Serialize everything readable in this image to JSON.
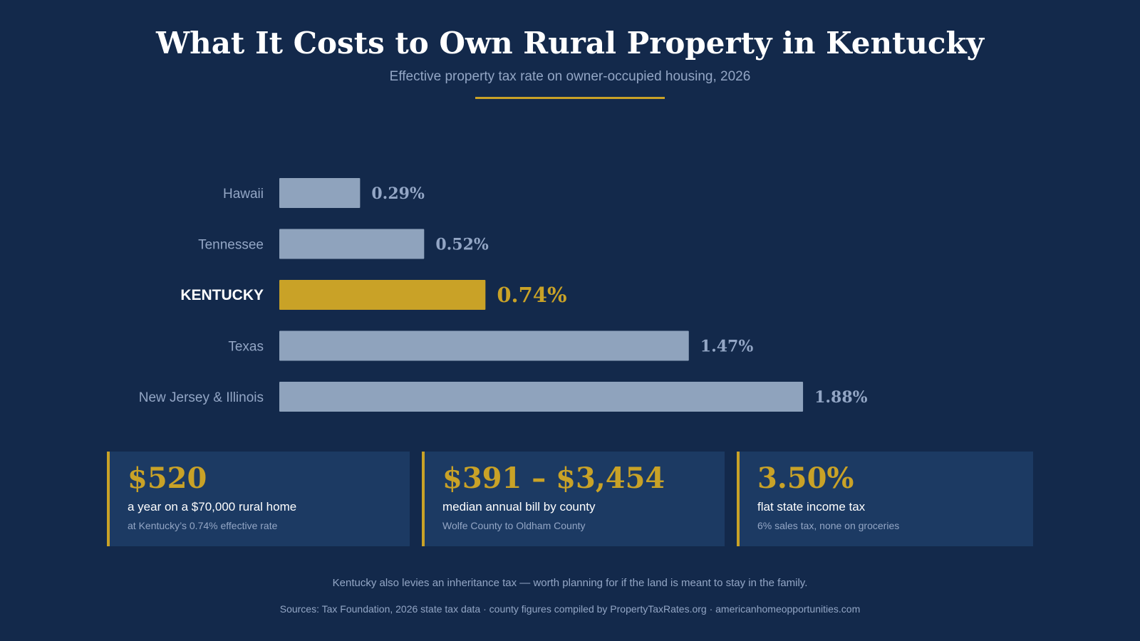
{
  "header": {
    "title": "What It Costs to Own Rural Property in Kentucky",
    "subtitle": "Effective property tax rate on owner-occupied housing, 2026"
  },
  "colors": {
    "background": "#13294b",
    "card": "#1c3a63",
    "accent": "#c9a227",
    "bar": "#8fa3bd",
    "muted_text": "#93a6c5"
  },
  "chart_data": {
    "type": "bar",
    "orientation": "horizontal",
    "title": "",
    "xlabel": "",
    "ylabel": "",
    "categories": [
      "Hawaii",
      "Tennessee",
      "KENTUCKY",
      "Texas",
      "New Jersey & Illinois"
    ],
    "values": [
      0.29,
      0.52,
      0.74,
      1.47,
      1.88
    ],
    "value_labels": [
      "0.29%",
      "0.52%",
      "0.74%",
      "1.47%",
      "1.88%"
    ],
    "highlight": "KENTUCKY",
    "highlight_color": "#c9a227",
    "bar_color": "#8fa3bd",
    "xlim": [
      0,
      2.0
    ],
    "grid": false,
    "legend": "none"
  },
  "stats": [
    {
      "value": "$520",
      "desc": "a year on a $70,000 rural home",
      "note": "at Kentucky’s 0.74% effective rate"
    },
    {
      "value": "$391 – $3,454",
      "desc": "median annual bill by county",
      "note": "Wolfe County to Oldham County"
    },
    {
      "value": "3.50%",
      "desc": "flat state income tax",
      "note": "6% sales tax, none on groceries"
    }
  ],
  "footer": {
    "note": "Kentucky also levies an inheritance tax — worth planning for if the land is meant to stay in the family.",
    "sources": "Sources: Tax Foundation, 2026 state tax data · county figures compiled by PropertyTaxRates.org · americanhomeopportunities.com"
  }
}
